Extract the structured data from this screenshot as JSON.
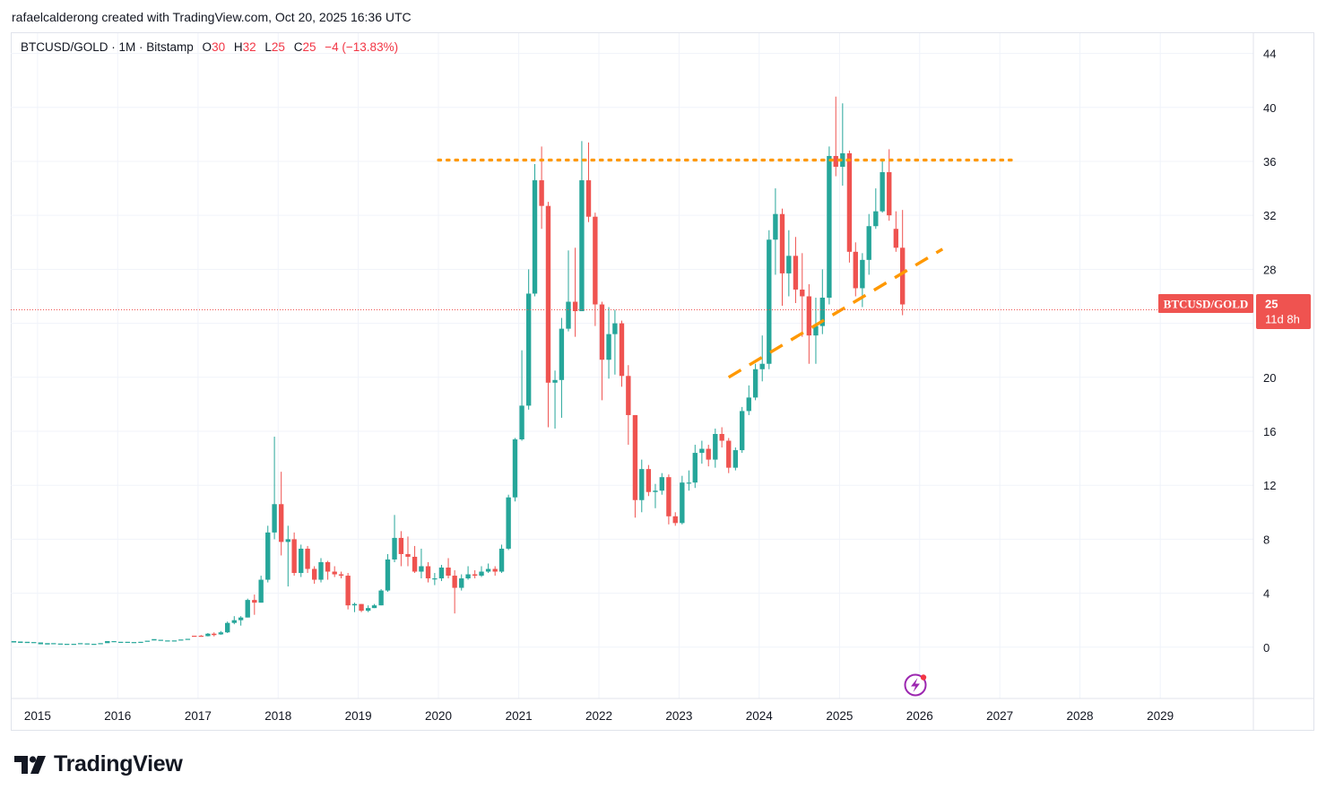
{
  "header": {
    "attribution": "rafaelcalderong created with TradingView.com, Oct 20, 2025 16:36 UTC"
  },
  "legend": {
    "symbol": "BTCUSD/GOLD · 1M · Bitstamp",
    "o_label": "O",
    "o_value": "30",
    "h_label": "H",
    "h_value": "32",
    "l_label": "L",
    "l_value": "25",
    "c_label": "C",
    "c_value": "25",
    "change": "−4 (−13.83%)"
  },
  "price_tag": {
    "symbol": "BTCUSD/GOLD",
    "price": "25",
    "countdown": "11d 8h"
  },
  "brand": {
    "name": "TradingView"
  },
  "colors": {
    "up": "#26a69a",
    "down": "#ef5350",
    "resistance": "#ff9800",
    "trend": "#ff9800",
    "grid": "#f0f3fa",
    "last_price_line": "#ef5350"
  },
  "chart_data": {
    "type": "candlestick",
    "title": "BTCUSD/GOLD · 1M · Bitstamp",
    "interval": "1M",
    "x_axis": {
      "type": "date",
      "range": [
        "2014-09-01",
        "2030-03-01"
      ],
      "tick_labels": [
        "2015",
        "2016",
        "2017",
        "2018",
        "2019",
        "2020",
        "2021",
        "2022",
        "2023",
        "2024",
        "2025",
        "2026",
        "2027",
        "2028",
        "2029"
      ]
    },
    "y_axis": {
      "range": [
        -3.8,
        45.5
      ],
      "ticks": [
        0,
        4,
        8,
        12,
        16,
        20,
        24,
        28,
        32,
        36,
        40,
        44
      ],
      "tick_labels": [
        "0",
        "4",
        "8",
        "12",
        "16",
        "20",
        "",
        "28",
        "32",
        "36",
        "40",
        "44"
      ],
      "position": "right"
    },
    "grid": true,
    "last_price": 25,
    "early_series": [
      [
        "2014-09",
        0.35,
        0.45
      ],
      [
        "2014-10",
        0.32,
        0.42
      ],
      [
        "2014-11",
        0.31,
        0.4
      ],
      [
        "2014-12",
        0.3,
        0.38
      ],
      [
        "2015-01",
        0.22,
        0.35
      ],
      [
        "2015-02",
        0.2,
        0.3
      ],
      [
        "2015-03",
        0.22,
        0.3
      ],
      [
        "2015-04",
        0.2,
        0.27
      ],
      [
        "2015-05",
        0.2,
        0.25
      ],
      [
        "2015-06",
        0.21,
        0.25
      ],
      [
        "2015-07",
        0.23,
        0.3
      ],
      [
        "2015-08",
        0.21,
        0.28
      ],
      [
        "2015-09",
        0.21,
        0.25
      ],
      [
        "2015-10",
        0.27,
        0.3
      ],
      [
        "2015-11",
        0.3,
        0.45
      ],
      [
        "2015-12",
        0.37,
        0.45
      ],
      [
        "2016-01",
        0.34,
        0.4
      ],
      [
        "2016-02",
        0.35,
        0.4
      ],
      [
        "2016-03",
        0.34,
        0.38
      ],
      [
        "2016-04",
        0.36,
        0.4
      ],
      [
        "2016-05",
        0.42,
        0.48
      ],
      [
        "2016-06",
        0.5,
        0.6
      ],
      [
        "2016-07",
        0.49,
        0.55
      ],
      [
        "2016-08",
        0.45,
        0.5
      ],
      [
        "2016-09",
        0.47,
        0.5
      ],
      [
        "2016-10",
        0.55,
        0.57
      ],
      [
        "2016-11",
        0.62,
        0.62
      ],
      [
        "2016-12",
        0.85,
        0.8
      ]
    ],
    "candles": [
      [
        "2017-01",
        0.85,
        0.82,
        0.9,
        0.78
      ],
      [
        "2017-02",
        0.82,
        1.0,
        1.05,
        0.8
      ],
      [
        "2017-03",
        1.0,
        0.9,
        1.1,
        0.8
      ],
      [
        "2017-04",
        0.95,
        1.1,
        1.2,
        0.92
      ],
      [
        "2017-05",
        1.1,
        1.8,
        1.9,
        1.05
      ],
      [
        "2017-06",
        1.8,
        2.0,
        2.3,
        1.7
      ],
      [
        "2017-07",
        2.0,
        2.2,
        2.3,
        1.6
      ],
      [
        "2017-08",
        2.2,
        3.5,
        3.6,
        2.2
      ],
      [
        "2017-09",
        3.5,
        3.3,
        3.9,
        2.4
      ],
      [
        "2017-10",
        3.3,
        5.0,
        5.3,
        3.3
      ],
      [
        "2017-11",
        5.0,
        8.5,
        9.0,
        4.8
      ],
      [
        "2017-12",
        8.5,
        10.6,
        15.6,
        8.0
      ],
      [
        "2018-01",
        10.6,
        7.8,
        13.0,
        6.8
      ],
      [
        "2018-02",
        7.8,
        8.0,
        9.0,
        4.5
      ],
      [
        "2018-03",
        8.0,
        5.5,
        8.5,
        5.3
      ],
      [
        "2018-04",
        5.5,
        7.3,
        7.6,
        5.2
      ],
      [
        "2018-05",
        7.3,
        5.8,
        7.5,
        5.5
      ],
      [
        "2018-06",
        5.8,
        5.0,
        6.0,
        4.7
      ],
      [
        "2018-07",
        5.0,
        6.3,
        6.6,
        4.8
      ],
      [
        "2018-08",
        6.3,
        5.6,
        6.4,
        5.0
      ],
      [
        "2018-09",
        5.6,
        5.4,
        6.0,
        5.2
      ],
      [
        "2018-10",
        5.4,
        5.3,
        5.6,
        5.1
      ],
      [
        "2018-11",
        5.3,
        3.1,
        5.5,
        2.8
      ],
      [
        "2018-12",
        3.1,
        3.2,
        3.3,
        2.6
      ],
      [
        "2019-01",
        3.2,
        2.7,
        3.2,
        2.6
      ],
      [
        "2019-02",
        2.7,
        2.9,
        3.1,
        2.6
      ],
      [
        "2019-03",
        2.9,
        3.1,
        3.2,
        2.9
      ],
      [
        "2019-04",
        3.1,
        4.2,
        4.3,
        3.1
      ],
      [
        "2019-05",
        4.2,
        6.5,
        6.9,
        4.1
      ],
      [
        "2019-06",
        6.5,
        8.1,
        9.8,
        6.3
      ],
      [
        "2019-07",
        8.1,
        6.9,
        8.6,
        6.0
      ],
      [
        "2019-08",
        6.9,
        6.7,
        8.2,
        6.0
      ],
      [
        "2019-09",
        6.7,
        5.6,
        7.5,
        5.5
      ],
      [
        "2019-10",
        5.6,
        6.0,
        7.3,
        5.1
      ],
      [
        "2019-11",
        6.0,
        5.1,
        6.3,
        4.8
      ],
      [
        "2019-12",
        5.1,
        5.1,
        5.5,
        4.6
      ],
      [
        "2020-01",
        5.1,
        5.9,
        6.1,
        4.9
      ],
      [
        "2020-02",
        5.9,
        5.3,
        6.6,
        5.1
      ],
      [
        "2020-03",
        5.3,
        4.4,
        5.7,
        2.5
      ],
      [
        "2020-04",
        4.4,
        5.1,
        5.4,
        4.2
      ],
      [
        "2020-05",
        5.1,
        5.4,
        6.0,
        5.0
      ],
      [
        "2020-06",
        5.4,
        5.3,
        5.7,
        5.1
      ],
      [
        "2020-07",
        5.3,
        5.6,
        6.0,
        5.2
      ],
      [
        "2020-08",
        5.6,
        5.8,
        6.2,
        5.5
      ],
      [
        "2020-09",
        5.8,
        5.6,
        6.0,
        5.3
      ],
      [
        "2020-10",
        5.6,
        7.3,
        7.6,
        5.5
      ],
      [
        "2020-11",
        7.3,
        11.1,
        11.3,
        7.2
      ],
      [
        "2020-12",
        11.1,
        15.4,
        15.5,
        10.8
      ],
      [
        "2021-01",
        15.4,
        17.9,
        22.0,
        15.3
      ],
      [
        "2021-02",
        17.9,
        26.2,
        28.0,
        17.6
      ],
      [
        "2021-03",
        26.2,
        34.6,
        35.8,
        26.0
      ],
      [
        "2021-04",
        34.6,
        32.7,
        37.1,
        31.0
      ],
      [
        "2021-05",
        32.7,
        19.6,
        33.0,
        16.3
      ],
      [
        "2021-06",
        19.6,
        19.8,
        20.5,
        16.2
      ],
      [
        "2021-07",
        19.8,
        23.6,
        24.4,
        17.0
      ],
      [
        "2021-08",
        23.6,
        25.6,
        29.4,
        23.4
      ],
      [
        "2021-09",
        25.6,
        24.9,
        29.6,
        23.0
      ],
      [
        "2021-10",
        24.9,
        34.6,
        37.5,
        24.9
      ],
      [
        "2021-11",
        34.6,
        31.9,
        37.4,
        31.5
      ],
      [
        "2021-12",
        31.9,
        25.4,
        32.2,
        23.8
      ],
      [
        "2022-01",
        25.4,
        21.3,
        25.6,
        18.3
      ],
      [
        "2022-02",
        21.3,
        23.2,
        25.2,
        19.9
      ],
      [
        "2022-03",
        23.2,
        24.0,
        25.0,
        20.2
      ],
      [
        "2022-04",
        24.0,
        20.1,
        24.2,
        19.3
      ],
      [
        "2022-05",
        20.1,
        17.2,
        20.9,
        15.0
      ],
      [
        "2022-06",
        17.2,
        10.9,
        17.2,
        9.6
      ],
      [
        "2022-07",
        10.9,
        13.2,
        13.9,
        10.0
      ],
      [
        "2022-08",
        13.2,
        11.5,
        13.5,
        11.2
      ],
      [
        "2022-09",
        11.5,
        11.6,
        12.1,
        10.3
      ],
      [
        "2022-10",
        11.6,
        12.6,
        12.9,
        11.3
      ],
      [
        "2022-11",
        12.6,
        9.7,
        12.8,
        9.1
      ],
      [
        "2022-12",
        9.7,
        9.2,
        10.0,
        9.0
      ],
      [
        "2023-01",
        9.2,
        12.2,
        12.7,
        9.1
      ],
      [
        "2023-02",
        12.2,
        12.2,
        13.1,
        11.6
      ],
      [
        "2023-03",
        12.2,
        14.4,
        15.0,
        11.8
      ],
      [
        "2023-04",
        14.4,
        14.7,
        15.3,
        13.6
      ],
      [
        "2023-05",
        14.7,
        13.9,
        15.0,
        13.4
      ],
      [
        "2023-06",
        13.9,
        15.8,
        16.2,
        13.3
      ],
      [
        "2023-07",
        15.8,
        15.3,
        16.3,
        14.8
      ],
      [
        "2023-08",
        15.3,
        13.3,
        15.5,
        12.9
      ],
      [
        "2023-09",
        13.3,
        14.6,
        14.8,
        13.1
      ],
      [
        "2023-10",
        14.6,
        17.5,
        17.8,
        14.4
      ],
      [
        "2023-11",
        17.5,
        18.5,
        19.4,
        17.2
      ],
      [
        "2023-12",
        18.5,
        20.6,
        21.0,
        18.3
      ],
      [
        "2024-01",
        20.6,
        21.0,
        23.1,
        19.7
      ],
      [
        "2024-02",
        21.0,
        30.2,
        30.9,
        20.6
      ],
      [
        "2024-03",
        30.2,
        32.1,
        34.0,
        27.6
      ],
      [
        "2024-04",
        32.1,
        27.7,
        32.5,
        25.3
      ],
      [
        "2024-05",
        27.7,
        29.0,
        30.9,
        26.0
      ],
      [
        "2024-06",
        29.0,
        26.5,
        30.4,
        25.5
      ],
      [
        "2024-07",
        26.5,
        26.0,
        29.2,
        23.0
      ],
      [
        "2024-08",
        26.0,
        23.1,
        26.9,
        21.0
      ],
      [
        "2024-09",
        23.1,
        23.8,
        25.9,
        21.0
      ],
      [
        "2024-10",
        23.8,
        25.9,
        28.0,
        23.2
      ],
      [
        "2024-11",
        25.9,
        36.4,
        37.1,
        25.4
      ],
      [
        "2024-12",
        36.4,
        35.6,
        40.8,
        34.9
      ],
      [
        "2025-01",
        35.6,
        36.6,
        40.3,
        34.2
      ],
      [
        "2025-02",
        36.6,
        29.3,
        36.8,
        28.5
      ],
      [
        "2025-03",
        29.3,
        26.6,
        30.0,
        26.0
      ],
      [
        "2025-04",
        26.6,
        28.7,
        29.2,
        25.2
      ],
      [
        "2025-05",
        28.7,
        31.2,
        32.1,
        27.6
      ],
      [
        "2025-06",
        31.2,
        32.3,
        34.0,
        31.0
      ],
      [
        "2025-07",
        32.3,
        35.2,
        36.2,
        32.2
      ],
      [
        "2025-08",
        35.2,
        32.0,
        36.9,
        31.6
      ],
      [
        "2025-09",
        31.0,
        29.6,
        32.3,
        29.3
      ],
      [
        "2025-10",
        29.6,
        25.4,
        32.4,
        24.6
      ]
    ],
    "lines": [
      {
        "name": "resistance",
        "style": "dotted",
        "points": [
          [
            "2020-01-01",
            36.1
          ],
          [
            "2027-03-01",
            36.1
          ]
        ]
      },
      {
        "name": "trendline",
        "style": "dashed",
        "points": [
          [
            "2023-08-15",
            20.0
          ],
          [
            "2026-04-15",
            29.5
          ]
        ]
      }
    ]
  }
}
